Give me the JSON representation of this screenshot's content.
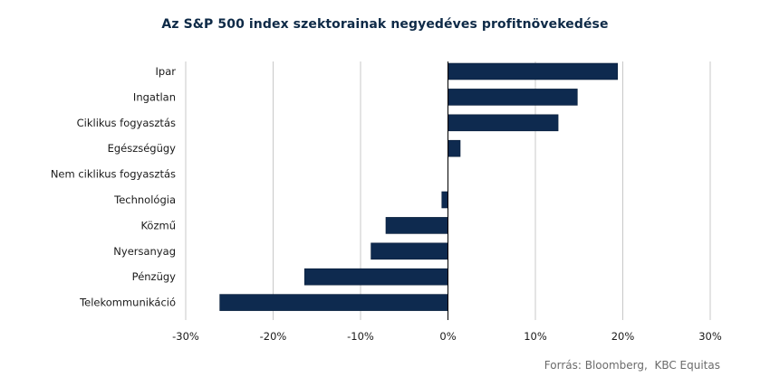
{
  "chart_data": {
    "type": "bar",
    "orientation": "horizontal",
    "title": "Az S&P 500 index szektorainak negyedéves profitnövekedése",
    "categories": [
      "Ipar",
      "Ingatlan",
      "Ciklikus fogyasztás",
      "Egészségügy",
      "Nem ciklikus fogyasztás",
      "Technológia",
      "Közmű",
      "Nyersanyag",
      "Pénzügy",
      "Telekommunikáció"
    ],
    "values": [
      19.4,
      14.8,
      12.6,
      1.4,
      0.0,
      -0.7,
      -7.1,
      -8.8,
      -16.4,
      -26.1
    ],
    "unit": "%",
    "xlim": [
      -30,
      30
    ],
    "xticks": [
      -30,
      -20,
      -10,
      0,
      10,
      20,
      30
    ],
    "xtick_labels": [
      "-30%",
      "-20%",
      "-10%",
      "0%",
      "10%",
      "20%",
      "30%"
    ],
    "grid": "vertical",
    "bar_color": "#0e2a4f"
  },
  "source": "Forrás: Bloomberg,  KBC Equitas"
}
